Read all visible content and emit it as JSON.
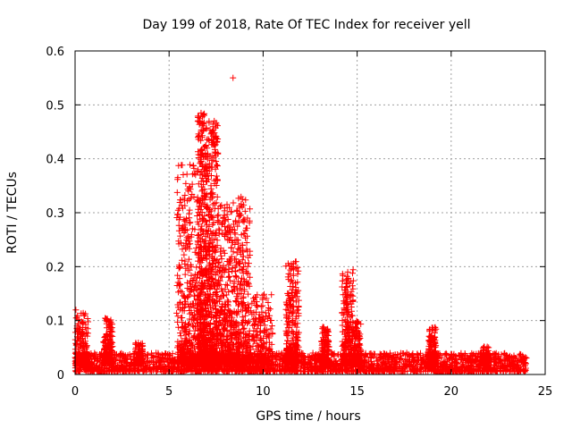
{
  "chart_data": {
    "type": "scatter",
    "title": "Day 199 of 2018, Rate Of TEC Index for receiver yell",
    "xlabel": "GPS time / hours",
    "ylabel": "ROTI / TECUs",
    "xlim": [
      0,
      25
    ],
    "ylim": [
      0,
      0.6
    ],
    "xticks": [
      0,
      5,
      10,
      15,
      20,
      25
    ],
    "yticks": [
      0,
      0.1,
      0.2,
      0.3,
      0.4,
      0.5,
      0.6
    ],
    "xtick_labels": [
      "0",
      "5",
      "10",
      "15",
      "20",
      "25"
    ],
    "ytick_labels": [
      "0",
      "0.1",
      "0.2",
      "0.3",
      "0.4",
      "0.5",
      "0.6"
    ],
    "grid": true,
    "marker": "+",
    "color": "#ff0000",
    "series": [
      {
        "name": "ROTI",
        "baseline": {
          "x_start": 0,
          "x_end": 24,
          "y_min": 0.005,
          "y_max": 0.04
        },
        "clusters": [
          {
            "x_start": 0.0,
            "x_end": 0.7,
            "y_peak": 0.12
          },
          {
            "x_start": 1.5,
            "x_end": 2.0,
            "y_peak": 0.105
          },
          {
            "x_start": 3.2,
            "x_end": 3.6,
            "y_peak": 0.06
          },
          {
            "x_start": 5.4,
            "x_end": 6.5,
            "y_peak": 0.39
          },
          {
            "x_start": 6.5,
            "x_end": 7.0,
            "y_peak": 0.485
          },
          {
            "x_start": 7.0,
            "x_end": 7.6,
            "y_peak": 0.47
          },
          {
            "x_start": 7.6,
            "x_end": 8.4,
            "y_peak": 0.32
          },
          {
            "x_start": 8.4,
            "x_end": 9.3,
            "y_peak": 0.33
          },
          {
            "x_start": 9.3,
            "x_end": 10.5,
            "y_peak": 0.15
          },
          {
            "x_start": 11.2,
            "x_end": 11.9,
            "y_peak": 0.21
          },
          {
            "x_start": 13.1,
            "x_end": 13.5,
            "y_peak": 0.09
          },
          {
            "x_start": 14.2,
            "x_end": 14.8,
            "y_peak": 0.195
          },
          {
            "x_start": 14.8,
            "x_end": 15.2,
            "y_peak": 0.1
          },
          {
            "x_start": 18.8,
            "x_end": 19.2,
            "y_peak": 0.09
          },
          {
            "x_start": 21.6,
            "x_end": 22.0,
            "y_peak": 0.055
          }
        ],
        "outliers": [
          {
            "x": 8.4,
            "y": 0.55
          },
          {
            "x": 6.7,
            "y": 0.485
          },
          {
            "x": 7.4,
            "y": 0.47
          },
          {
            "x": 8.9,
            "y": 0.325
          },
          {
            "x": 11.5,
            "y": 0.205
          },
          {
            "x": 14.5,
            "y": 0.19
          }
        ]
      }
    ]
  }
}
